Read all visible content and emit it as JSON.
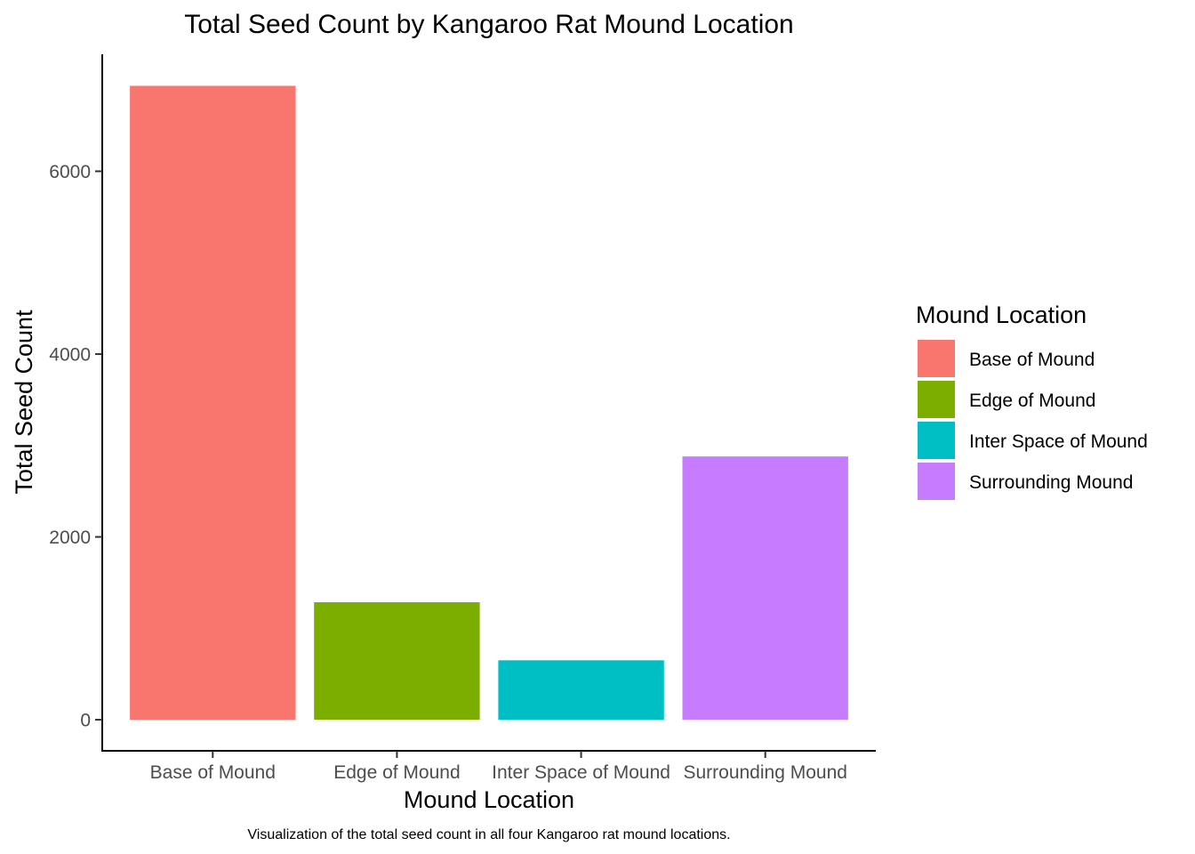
{
  "chart_data": {
    "type": "bar",
    "title": "Total Seed Count by Kangaroo Rat Mound Location",
    "xlabel": "Mound Location",
    "ylabel": "Total Seed Count",
    "caption": "Visualization of the total seed count in all four Kangaroo rat mound locations.",
    "categories": [
      "Base of Mound",
      "Edge of Mound",
      "Inter Space of Mound",
      "Surrounding Mound"
    ],
    "values": [
      6935,
      1285,
      650,
      2880
    ],
    "colors": [
      "#F8766D",
      "#7CAE00",
      "#00BFC4",
      "#C77CFF"
    ],
    "ylim": [
      -340,
      7280
    ],
    "yticks": [
      0,
      2000,
      4000,
      6000
    ],
    "ytick_labels": [
      "0",
      "2000",
      "4000",
      "6000"
    ],
    "grid": false,
    "legend": {
      "title": "Mound Location",
      "position": "right",
      "entries": [
        "Base of Mound",
        "Edge of Mound",
        "Inter Space of Mound",
        "Surrounding Mound"
      ]
    }
  }
}
